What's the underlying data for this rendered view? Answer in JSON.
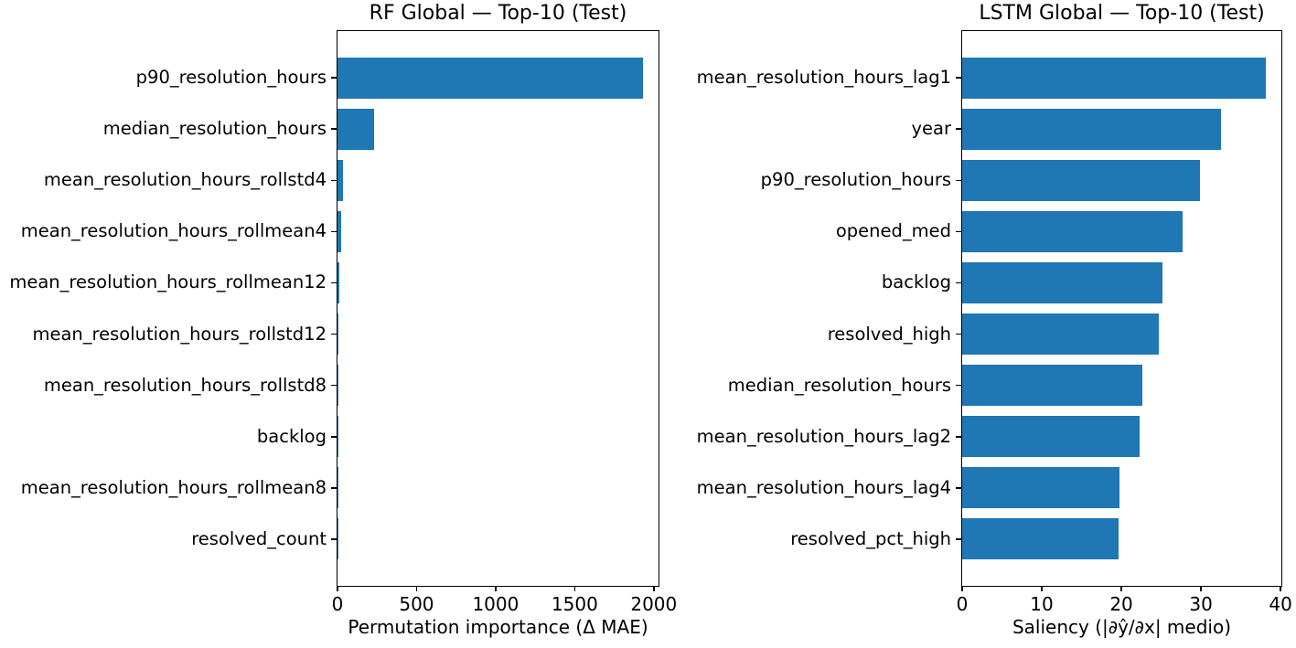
{
  "figure": {
    "background": "#ffffff",
    "text_color": "#000000",
    "bar_color": "#1f77b4"
  },
  "chart_data": [
    {
      "type": "bar",
      "orientation": "horizontal",
      "title": "RF Global — Top-10 (Test)",
      "xlabel": "Permutation importance (Δ MAE)",
      "categories": [
        "p90_resolution_hours",
        "median_resolution_hours",
        "mean_resolution_hours_rollstd4",
        "mean_resolution_hours_rollmean4",
        "mean_resolution_hours_rollmean12",
        "mean_resolution_hours_rollstd12",
        "mean_resolution_hours_rollstd8",
        "backlog",
        "mean_resolution_hours_rollmean8",
        "resolved_count"
      ],
      "values": [
        1930,
        232,
        33,
        21,
        11,
        6,
        2,
        1.5,
        1,
        0.8
      ],
      "xlim": [
        0,
        2030
      ],
      "xticks": [
        0,
        500,
        1000,
        1500,
        2000
      ],
      "bar_color": "#1f77b4",
      "grid": false,
      "legend_position": "none"
    },
    {
      "type": "bar",
      "orientation": "horizontal",
      "title": "LSTM Global — Top-10 (Test)",
      "xlabel": "Saliency (|∂ŷ/∂x| medio)",
      "categories": [
        "mean_resolution_hours_lag1",
        "year",
        "p90_resolution_hours",
        "opened_med",
        "backlog",
        "resolved_high",
        "median_resolution_hours",
        "mean_resolution_hours_lag2",
        "mean_resolution_hours_lag4",
        "resolved_pct_high"
      ],
      "values": [
        38.2,
        32.5,
        29.9,
        27.7,
        25.2,
        24.7,
        22.6,
        22.3,
        19.8,
        19.6
      ],
      "xlim": [
        0,
        40.1
      ],
      "xticks": [
        0,
        10,
        20,
        30,
        40
      ],
      "bar_color": "#1f77b4",
      "grid": false,
      "legend_position": "none"
    }
  ]
}
